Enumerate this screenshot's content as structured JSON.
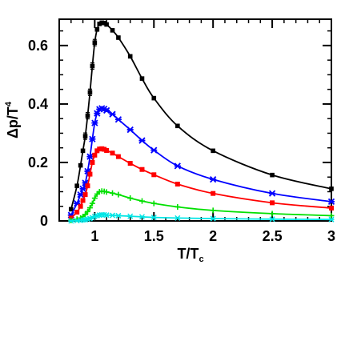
{
  "chart_data": {
    "type": "line",
    "xlabel": "T/T",
    "xlabel_subscript": "c",
    "ylabel": "Δp/T",
    "ylabel_superscript": "4",
    "xlim": [
      0.7,
      3.0
    ],
    "ylim": [
      0,
      0.69
    ],
    "x_ticks": [
      {
        "value": 1,
        "label": "1"
      },
      {
        "value": 1.5,
        "label": "1.5"
      },
      {
        "value": 2,
        "label": "2"
      },
      {
        "value": 2.5,
        "label": "2.5"
      },
      {
        "value": 3,
        "label": "3"
      }
    ],
    "y_ticks": [
      {
        "value": 0,
        "label": "0"
      },
      {
        "value": 0.2,
        "label": "0.2"
      },
      {
        "value": 0.4,
        "label": "0.4"
      },
      {
        "value": 0.6,
        "label": "0.6"
      }
    ],
    "grid": false,
    "series": [
      {
        "color": "#000000",
        "x": [
          0.8,
          0.85,
          0.88,
          0.9,
          0.92,
          0.94,
          0.96,
          0.98,
          1.0,
          1.02,
          1.04,
          1.06,
          1.08,
          1.1,
          1.15,
          1.2,
          1.3,
          1.4,
          1.5,
          1.7,
          2.0,
          2.5,
          3.0
        ],
        "y": [
          0.04,
          0.12,
          0.19,
          0.24,
          0.29,
          0.36,
          0.44,
          0.53,
          0.61,
          0.655,
          0.674,
          0.678,
          0.677,
          0.672,
          0.652,
          0.627,
          0.563,
          0.487,
          0.42,
          0.325,
          0.24,
          0.157,
          0.11
        ]
      },
      {
        "color": "#0000ff",
        "x": [
          0.8,
          0.85,
          0.88,
          0.9,
          0.92,
          0.94,
          0.96,
          0.98,
          1.0,
          1.02,
          1.04,
          1.06,
          1.08,
          1.1,
          1.15,
          1.2,
          1.3,
          1.4,
          1.5,
          1.7,
          2.0,
          2.5,
          3.0
        ],
        "y": [
          0.02,
          0.06,
          0.09,
          0.11,
          0.13,
          0.17,
          0.22,
          0.28,
          0.335,
          0.368,
          0.382,
          0.385,
          0.383,
          0.378,
          0.365,
          0.347,
          0.312,
          0.275,
          0.242,
          0.188,
          0.142,
          0.094,
          0.066
        ]
      },
      {
        "color": "#ff0000",
        "x": [
          0.8,
          0.85,
          0.88,
          0.9,
          0.92,
          0.94,
          0.96,
          0.98,
          1.0,
          1.02,
          1.04,
          1.06,
          1.08,
          1.1,
          1.15,
          1.2,
          1.3,
          1.4,
          1.5,
          1.7,
          2.0,
          2.5,
          3.0
        ],
        "y": [
          0.01,
          0.03,
          0.05,
          0.07,
          0.09,
          0.12,
          0.16,
          0.2,
          0.225,
          0.24,
          0.246,
          0.247,
          0.245,
          0.241,
          0.232,
          0.22,
          0.197,
          0.176,
          0.158,
          0.126,
          0.094,
          0.062,
          0.044
        ]
      },
      {
        "color": "#00e000",
        "x": [
          0.8,
          0.85,
          0.88,
          0.9,
          0.92,
          0.94,
          0.96,
          0.98,
          1.0,
          1.02,
          1.04,
          1.06,
          1.08,
          1.1,
          1.15,
          1.2,
          1.3,
          1.4,
          1.5,
          1.7,
          2.0,
          2.5,
          3.0
        ],
        "y": [
          0.002,
          0.006,
          0.01,
          0.015,
          0.022,
          0.032,
          0.045,
          0.06,
          0.078,
          0.092,
          0.1,
          0.102,
          0.101,
          0.099,
          0.095,
          0.09,
          0.078,
          0.068,
          0.06,
          0.048,
          0.036,
          0.025,
          0.018
        ]
      },
      {
        "color": "#00e5e5",
        "x": [
          0.8,
          0.85,
          0.88,
          0.9,
          0.92,
          0.94,
          0.96,
          0.98,
          1.0,
          1.02,
          1.04,
          1.06,
          1.08,
          1.1,
          1.15,
          1.2,
          1.3,
          1.4,
          1.5,
          1.7,
          2.0,
          2.5,
          3.0
        ],
        "y": [
          0.0,
          0.001,
          0.002,
          0.003,
          0.004,
          0.006,
          0.008,
          0.011,
          0.015,
          0.018,
          0.02,
          0.021,
          0.021,
          0.02,
          0.019,
          0.018,
          0.016,
          0.014,
          0.012,
          0.01,
          0.008,
          0.006,
          0.005
        ]
      }
    ]
  }
}
